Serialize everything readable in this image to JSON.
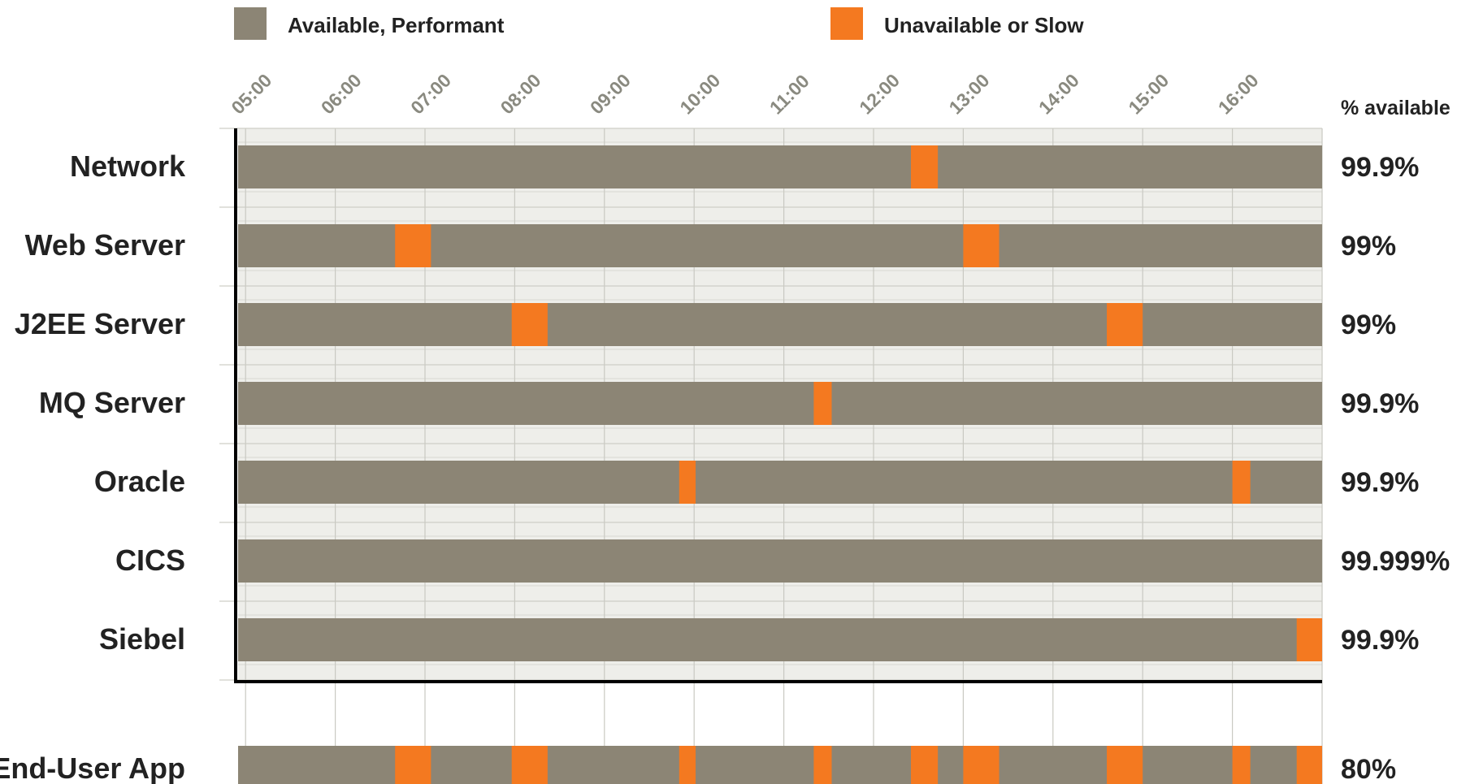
{
  "chart_data": {
    "type": "timeline",
    "legend": [
      {
        "label": "Available, Performant",
        "color": "#8c8575"
      },
      {
        "label": "Unavailable or Slow",
        "color": "#f47920"
      }
    ],
    "legend_position": "top",
    "x_ticks": [
      "05:00",
      "06:00",
      "07:00",
      "08:00",
      "09:00",
      "10:00",
      "11:00",
      "12:00",
      "13:00",
      "14:00",
      "15:00",
      "16:00"
    ],
    "x_range": [
      "04:55",
      "17:00"
    ],
    "pct_header": "% available",
    "grid": true,
    "rows": [
      {
        "label": "Network",
        "pct": "99.9%",
        "outages": [
          [
            "12:25",
            "12:43"
          ]
        ]
      },
      {
        "label": "Web Server",
        "pct": "99%",
        "outages": [
          [
            "06:40",
            "07:04"
          ],
          [
            "13:00",
            "13:24"
          ]
        ]
      },
      {
        "label": "J2EE Server",
        "pct": "99%",
        "outages": [
          [
            "07:58",
            "08:22"
          ],
          [
            "14:36",
            "15:00"
          ]
        ]
      },
      {
        "label": "MQ Server",
        "pct": "99.9%",
        "outages": [
          [
            "11:20",
            "11:32"
          ]
        ]
      },
      {
        "label": "Oracle",
        "pct": "99.9%",
        "outages": [
          [
            "09:50",
            "10:01"
          ]
        ],
        "extra": [
          [
            "16:00",
            "16:12"
          ]
        ]
      },
      {
        "label": "CICS",
        "pct": "99.999%",
        "outages": []
      },
      {
        "label": "Siebel",
        "pct": "99.9%",
        "outages": [
          [
            "16:43",
            "17:00"
          ]
        ]
      }
    ],
    "summary": {
      "label": "End-User App",
      "pct": "80%"
    }
  }
}
